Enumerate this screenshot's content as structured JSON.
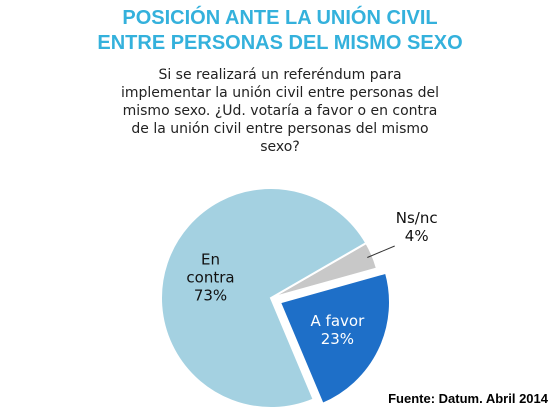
{
  "colors": {
    "title": "#34b1dc",
    "en_contra": "#a4d1e1",
    "a_favor": "#1e6fc8",
    "ns_nc": "#c8c8c8"
  },
  "header": {
    "title_lines": [
      "POSICIÓN ANTE LA UNIÓN CIVIL",
      "ENTRE PERSONAS DEL MISMO SEXO"
    ],
    "question_lines": [
      "Si se realizará un referéndum para",
      "implementar la unión civil entre personas del",
      "mismo sexo.  ¿Ud. votaría a favor o en contra",
      "de la unión civil entre personas del mismo",
      "sexo?"
    ]
  },
  "chart_data": {
    "type": "pie",
    "title": "POSICIÓN ANTE LA UNIÓN CIVIL ENTRE PERSONAS DEL MISMO SEXO",
    "slices": [
      {
        "label_lines": [
          "Ns/nc"
        ],
        "value": 4,
        "display": "4%",
        "color": "#c8c8c8"
      },
      {
        "label_lines": [
          "A favor"
        ],
        "value": 23,
        "display": "23%",
        "color": "#1e6fc8"
      },
      {
        "label_lines": [
          "En",
          "contra"
        ],
        "value": 73,
        "display": "73%",
        "color": "#a4d1e1"
      }
    ],
    "exploded_slice": "A favor",
    "legend": "none"
  },
  "source": "Fuente: Datum. Abril 2014"
}
